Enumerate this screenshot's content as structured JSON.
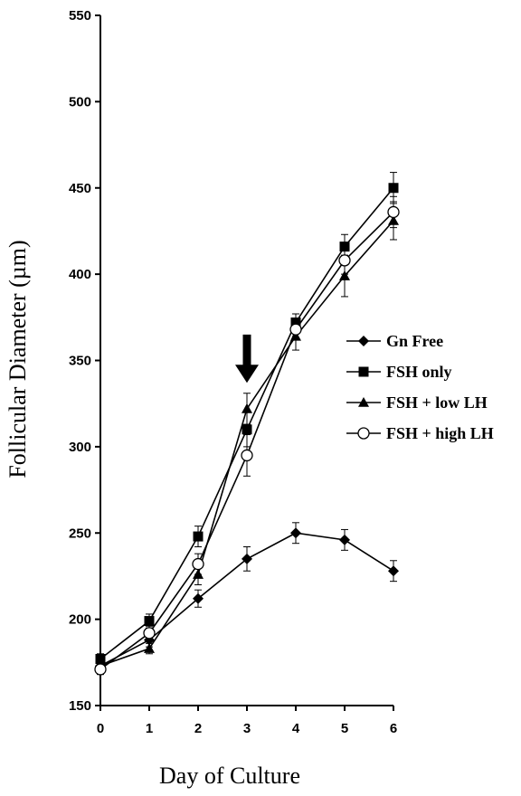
{
  "chart_data": {
    "type": "line",
    "title": "",
    "xlabel": "Day of Culture",
    "ylabel": "Follicular Diameter (µm)",
    "x": [
      0,
      1,
      2,
      3,
      4,
      5,
      6
    ],
    "xlim": [
      0,
      6
    ],
    "ylim": [
      150,
      550
    ],
    "yticks": [
      150,
      200,
      250,
      300,
      350,
      400,
      450,
      500,
      550
    ],
    "grid": false,
    "legend_position": "right",
    "series": [
      {
        "name": "Gn Free",
        "marker": "diamond",
        "values": [
          173,
          188,
          212,
          235,
          250,
          246,
          228
        ],
        "errors": [
          3,
          4,
          5,
          7,
          6,
          6,
          6
        ]
      },
      {
        "name": "FSH only",
        "marker": "square",
        "values": [
          177,
          199,
          248,
          310,
          372,
          416,
          450
        ],
        "errors": [
          3,
          4,
          6,
          10,
          5,
          7,
          9
        ]
      },
      {
        "name": "FSH + low LH",
        "marker": "triangle",
        "values": [
          173,
          183,
          226,
          322,
          364,
          399,
          431
        ],
        "errors": [
          3,
          3,
          6,
          9,
          8,
          12,
          11
        ]
      },
      {
        "name": "FSH + high LH",
        "marker": "circle-open",
        "values": [
          171,
          192,
          232,
          295,
          368,
          408,
          436
        ],
        "errors": [
          3,
          4,
          6,
          12,
          6,
          8,
          9
        ]
      }
    ],
    "annotations": [
      {
        "type": "arrow-down",
        "x": 3,
        "y_top": 365,
        "y_bottom": 337
      }
    ],
    "style": {
      "line_color": "#000000",
      "marker_color": "#000000"
    }
  }
}
